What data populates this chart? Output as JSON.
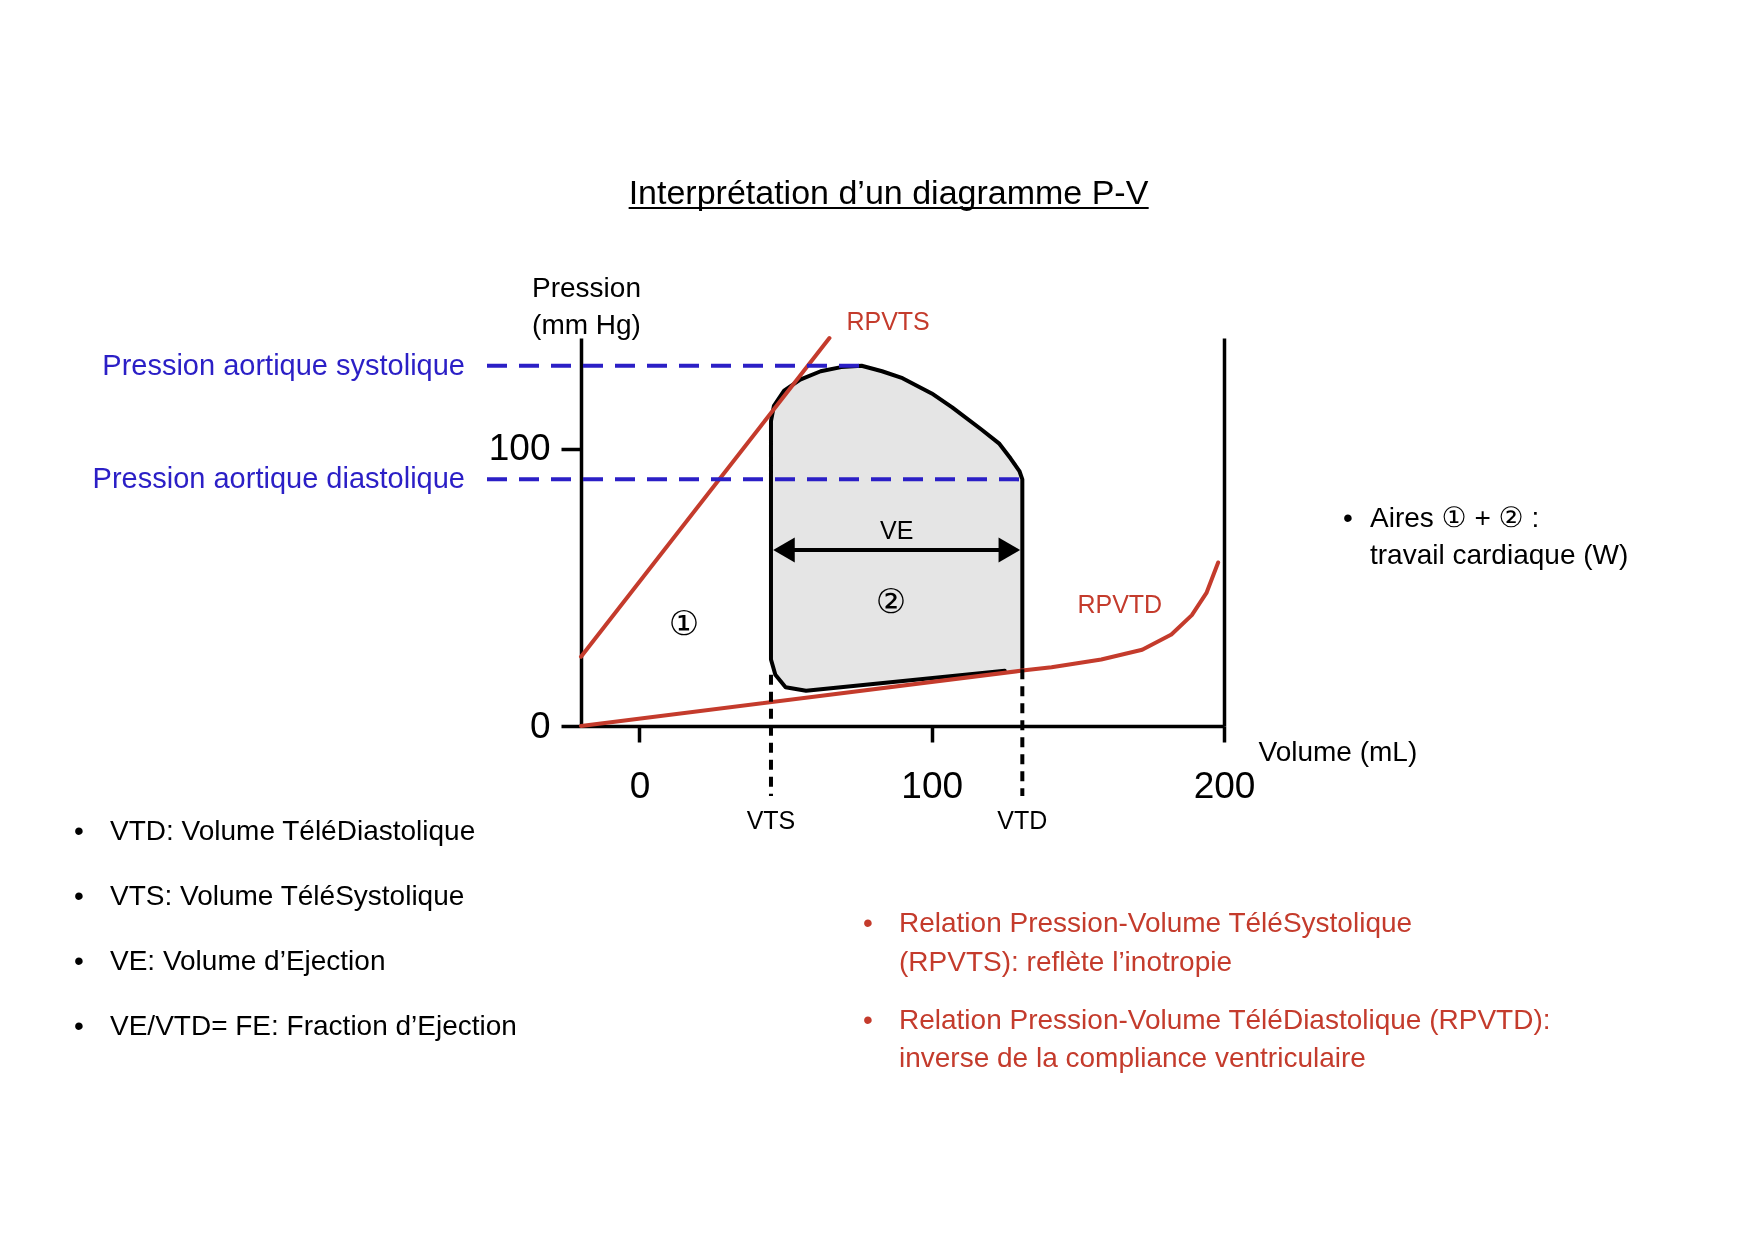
{
  "chart_data": {
    "type": "line",
    "title": "Interprétation d’un diagramme P-V",
    "xlabel": "Volume (mL)",
    "ylabel": "Pression (mm Hg)",
    "xlim": [
      -20,
      200
    ],
    "ylim": [
      0,
      140
    ],
    "xticks": [
      0,
      100,
      200
    ],
    "yticks": [
      0,
      100
    ],
    "series": [
      {
        "color": "#000000",
        "x": [
          131,
          131,
          130,
          127,
          123,
          117,
          107,
          100,
          90,
          83,
          76,
          69,
          62,
          55,
          49.5,
          46,
          45,
          45,
          46.5,
          50,
          57,
          125
        ],
        "values": [
          20.5,
          89,
          92,
          96.5,
          102,
          107,
          115,
          120,
          125.5,
          128,
          130,
          129.5,
          128,
          125,
          121,
          115.5,
          110,
          24,
          18.5,
          14,
          12.7,
          19.9
        ]
      },
      {
        "name": "RPVTS",
        "color": "#c43b2c",
        "x": [
          -20,
          65
        ],
        "values": [
          25,
          140
        ]
      },
      {
        "name": "RPVTD",
        "color": "#c43b2c",
        "x": [
          -20,
          131,
          141,
          158,
          172,
          182,
          189,
          194,
          198
        ],
        "values": [
          0,
          20,
          21.2,
          24,
          27.5,
          33,
          40,
          48,
          59
        ]
      }
    ],
    "ref_lines": [
      {
        "axis": "y",
        "value": 130,
        "label": "Pression aortique systolique",
        "color": "#2b1fc6",
        "line_style": "dashed"
      },
      {
        "axis": "y",
        "value": 89,
        "label": "Pression aortique diastolique",
        "color": "#2b1fc6",
        "line_style": "dashed"
      },
      {
        "axis": "x",
        "value": 45,
        "label": "VTS",
        "color": "#000000",
        "line_style": "dotted"
      },
      {
        "axis": "x",
        "value": 131,
        "label": "VTD",
        "color": "#000000",
        "line_style": "dotted"
      }
    ],
    "annotations": [
      "VE",
      "①",
      "②",
      "• Aires ① + ② : travail cardiaque (W)",
      "• VTD: Volume TéléDiastolique",
      "• VTS: Volume TéléSystolique",
      "• VE: Volume d’Ejection",
      "• VE/VTD= FE: Fraction d’Ejection",
      "• Relation Pression-Volume TéléSystolique (RPVTS): reflète l’inotropie",
      "• Relation Pression-Volume TéléDiastolique (RPVTD): inverse de la compliance ventriculaire"
    ]
  }
}
